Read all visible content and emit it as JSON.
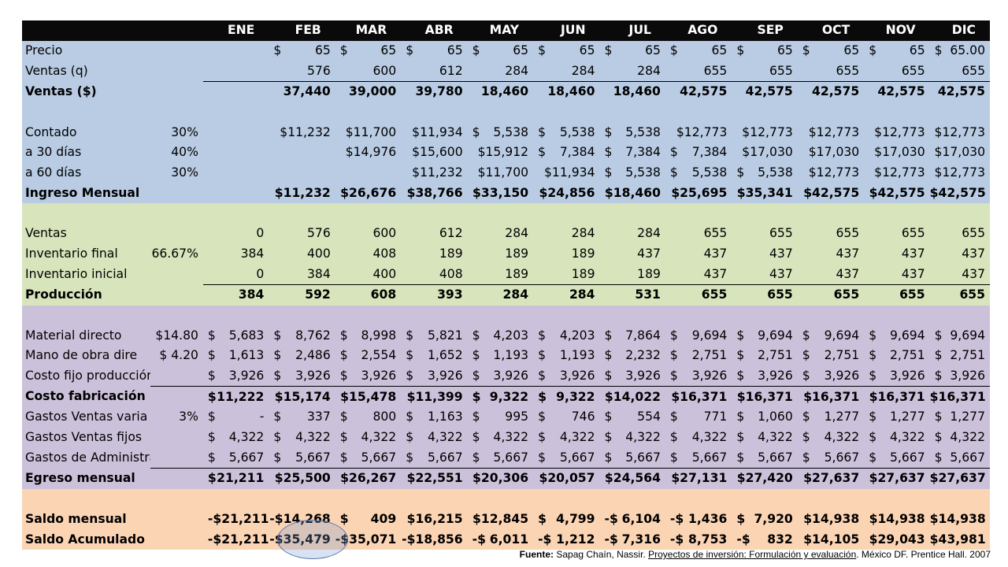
{
  "months": [
    "ENE",
    "FEB",
    "MAR",
    "ABR",
    "MAY",
    "JUN",
    "JUL",
    "AGO",
    "SEP",
    "OCT",
    "NOV",
    "DIC"
  ],
  "rows": [
    {
      "section": "blue",
      "style": "",
      "label": "Precio",
      "param": "",
      "cells": [
        null,
        [
          "$",
          "65"
        ],
        [
          "$",
          "65"
        ],
        [
          "$",
          "65"
        ],
        [
          "$",
          "65"
        ],
        [
          "$",
          "65"
        ],
        [
          "$",
          "65"
        ],
        [
          "$",
          "65"
        ],
        [
          "$",
          "65"
        ],
        [
          "$",
          "65"
        ],
        [
          "$",
          "65"
        ],
        [
          "$",
          "65.00"
        ]
      ]
    },
    {
      "section": "blue",
      "style": "",
      "label": "Ventas (q)",
      "param": "",
      "cells": [
        null,
        "576",
        "600",
        "612",
        "284",
        "284",
        "284",
        "655",
        "655",
        "655",
        "655",
        "655"
      ]
    },
    {
      "section": "blue",
      "style": "bold rule",
      "label": "Ventas ($)",
      "param": "",
      "cells": [
        null,
        "37,440",
        "39,000",
        "39,780",
        "18,460",
        "18,460",
        "18,460",
        "42,575",
        "42,575",
        "42,575",
        "42,575",
        "42,575"
      ]
    },
    {
      "section": "blue",
      "style": "",
      "label": "",
      "param": "",
      "cells": [
        null,
        null,
        null,
        null,
        null,
        null,
        null,
        null,
        null,
        null,
        null,
        null
      ]
    },
    {
      "section": "blue",
      "style": "",
      "label": "Contado",
      "param": "30%",
      "cells": [
        null,
        "$11,232",
        "$11,700",
        "$11,934",
        [
          "$",
          "5,538"
        ],
        [
          "$",
          "5,538"
        ],
        [
          "$",
          "5,538"
        ],
        "$12,773",
        "$12,773",
        "$12,773",
        "$12,773",
        "$12,773"
      ]
    },
    {
      "section": "blue",
      "style": "",
      "label": "a 30 días",
      "param": "40%",
      "cells": [
        null,
        null,
        "$14,976",
        "$15,600",
        "$15,912",
        [
          "$",
          "7,384"
        ],
        [
          "$",
          "7,384"
        ],
        [
          "$",
          "7,384"
        ],
        "$17,030",
        "$17,030",
        "$17,030",
        "$17,030"
      ]
    },
    {
      "section": "blue",
      "style": "",
      "label": "a 60 días",
      "param": "30%",
      "cells": [
        null,
        null,
        null,
        "$11,232",
        "$11,700",
        "$11,934",
        [
          "$",
          "5,538"
        ],
        [
          "$",
          "5,538"
        ],
        [
          "$",
          "5,538"
        ],
        "$12,773",
        "$12,773",
        "$12,773"
      ]
    },
    {
      "section": "blue",
      "style": "bold",
      "label": "Ingreso Mensual",
      "param": "",
      "cells": [
        null,
        "$11,232",
        "$26,676",
        "$38,766",
        "$33,150",
        "$24,856",
        "$18,460",
        "$25,695",
        "$35,341",
        "$42,575",
        "$42,575",
        "$42,575"
      ]
    },
    {
      "section": "green",
      "style": "",
      "label": "",
      "param": "",
      "cells": [
        null,
        null,
        null,
        null,
        null,
        null,
        null,
        null,
        null,
        null,
        null,
        null
      ]
    },
    {
      "section": "green",
      "style": "",
      "label": "Ventas",
      "param": "",
      "cells": [
        "0",
        "576",
        "600",
        "612",
        "284",
        "284",
        "284",
        "655",
        "655",
        "655",
        "655",
        "655"
      ]
    },
    {
      "section": "green",
      "style": "",
      "label": "Inventario final",
      "param": "66.67%",
      "cells": [
        "384",
        "400",
        "408",
        "189",
        "189",
        "189",
        "437",
        "437",
        "437",
        "437",
        "437",
        "437"
      ]
    },
    {
      "section": "green",
      "style": "",
      "label": "Inventario inicial",
      "param": "",
      "cells": [
        "0",
        "384",
        "400",
        "408",
        "189",
        "189",
        "189",
        "437",
        "437",
        "437",
        "437",
        "437"
      ]
    },
    {
      "section": "green",
      "style": "bold rule",
      "label": "Producción",
      "param": "",
      "cells": [
        "384",
        "592",
        "608",
        "393",
        "284",
        "284",
        "531",
        "655",
        "655",
        "655",
        "655",
        "655"
      ]
    },
    {
      "section": "purple",
      "style": "",
      "label": "",
      "param": "",
      "cells": [
        null,
        null,
        null,
        null,
        null,
        null,
        null,
        null,
        null,
        null,
        null,
        null
      ]
    },
    {
      "section": "purple",
      "style": "",
      "label": "Material directo",
      "param": "$14.80",
      "cells": [
        [
          "$",
          "5,683"
        ],
        [
          "$",
          "8,762"
        ],
        [
          "$",
          "8,998"
        ],
        [
          "$",
          "5,821"
        ],
        [
          "$",
          "4,203"
        ],
        [
          "$",
          "4,203"
        ],
        [
          "$",
          "7,864"
        ],
        [
          "$",
          "9,694"
        ],
        [
          "$",
          "9,694"
        ],
        [
          "$",
          "9,694"
        ],
        [
          "$",
          "9,694"
        ],
        [
          "$",
          "9,694"
        ]
      ]
    },
    {
      "section": "purple",
      "style": "",
      "label": "Mano de obra dire",
      "param": "$  4.20",
      "cells": [
        [
          "$",
          "1,613"
        ],
        [
          "$",
          "2,486"
        ],
        [
          "$",
          "2,554"
        ],
        [
          "$",
          "1,652"
        ],
        [
          "$",
          "1,193"
        ],
        [
          "$",
          "1,193"
        ],
        [
          "$",
          "2,232"
        ],
        [
          "$",
          "2,751"
        ],
        [
          "$",
          "2,751"
        ],
        [
          "$",
          "2,751"
        ],
        [
          "$",
          "2,751"
        ],
        [
          "$",
          "2,751"
        ]
      ]
    },
    {
      "section": "purple",
      "style": "",
      "label": "Costo fijo producción",
      "param": "",
      "cells": [
        [
          "$",
          "3,926"
        ],
        [
          "$",
          "3,926"
        ],
        [
          "$",
          "3,926"
        ],
        [
          "$",
          "3,926"
        ],
        [
          "$",
          "3,926"
        ],
        [
          "$",
          "3,926"
        ],
        [
          "$",
          "3,926"
        ],
        [
          "$",
          "3,926"
        ],
        [
          "$",
          "3,926"
        ],
        [
          "$",
          "3,926"
        ],
        [
          "$",
          "3,926"
        ],
        [
          "$",
          "3,926"
        ]
      ]
    },
    {
      "section": "purple",
      "style": "bold rule2",
      "label": "Costo fabricación",
      "param": "",
      "cells": [
        [
          "$",
          "11,222"
        ],
        "$15,174",
        "$15,478",
        "$11,399",
        [
          "$",
          "9,322"
        ],
        [
          "$",
          "9,322"
        ],
        "$14,022",
        "$16,371",
        "$16,371",
        "$16,371",
        "$16,371",
        "$16,371"
      ]
    },
    {
      "section": "purple",
      "style": "",
      "label": "Gastos Ventas varia",
      "param": "3%",
      "cells": [
        [
          "$",
          "-"
        ],
        [
          "$",
          "337"
        ],
        [
          "$",
          "800"
        ],
        [
          "$",
          "1,163"
        ],
        [
          "$",
          "995"
        ],
        [
          "$",
          "746"
        ],
        [
          "$",
          "554"
        ],
        [
          "$",
          "771"
        ],
        [
          "$",
          "1,060"
        ],
        [
          "$",
          "1,277"
        ],
        [
          "$",
          "1,277"
        ],
        [
          "$",
          "1,277"
        ]
      ]
    },
    {
      "section": "purple",
      "style": "",
      "label": "Gastos Ventas fijos",
      "param": "",
      "cells": [
        [
          "$",
          "4,322"
        ],
        [
          "$",
          "4,322"
        ],
        [
          "$",
          "4,322"
        ],
        [
          "$",
          "4,322"
        ],
        [
          "$",
          "4,322"
        ],
        [
          "$",
          "4,322"
        ],
        [
          "$",
          "4,322"
        ],
        [
          "$",
          "4,322"
        ],
        [
          "$",
          "4,322"
        ],
        [
          "$",
          "4,322"
        ],
        [
          "$",
          "4,322"
        ],
        [
          "$",
          "4,322"
        ]
      ]
    },
    {
      "section": "purple",
      "style": "",
      "label": "Gastos de Administración",
      "param": "",
      "cells": [
        [
          "$",
          "5,667"
        ],
        [
          "$",
          "5,667"
        ],
        [
          "$",
          "5,667"
        ],
        [
          "$",
          "5,667"
        ],
        [
          "$",
          "5,667"
        ],
        [
          "$",
          "5,667"
        ],
        [
          "$",
          "5,667"
        ],
        [
          "$",
          "5,667"
        ],
        [
          "$",
          "5,667"
        ],
        [
          "$",
          "5,667"
        ],
        [
          "$",
          "5,667"
        ],
        [
          "$",
          "5,667"
        ]
      ]
    },
    {
      "section": "purple",
      "style": "bold rule2",
      "label": "Egreso mensual",
      "param": "",
      "cells": [
        [
          "$",
          "21,211"
        ],
        "$25,500",
        "$26,267",
        "$22,551",
        "$20,306",
        "$20,057",
        "$24,564",
        "$27,131",
        "$27,420",
        "$27,637",
        "$27,637",
        "$27,637"
      ]
    },
    {
      "section": "orange",
      "style": "",
      "label": "",
      "param": "",
      "cells": [
        null,
        null,
        null,
        null,
        null,
        null,
        null,
        null,
        null,
        null,
        null,
        null
      ]
    },
    {
      "section": "orange",
      "style": "bold",
      "label": "Saldo mensual",
      "param": "",
      "cells": [
        [
          "-$",
          "21,211"
        ],
        "-$14,268",
        [
          "$",
          "409"
        ],
        "$16,215",
        "$12,845",
        [
          "$",
          "4,799"
        ],
        [
          "-$",
          "6,104"
        ],
        [
          "-$",
          "1,436"
        ],
        [
          "$",
          "7,920"
        ],
        "$14,938",
        "$14,938",
        "$14,938"
      ]
    },
    {
      "section": "orange",
      "style": "bold",
      "label": "Saldo Acumulado",
      "param": "",
      "cells": [
        [
          "-$",
          "21,211"
        ],
        "-$35,479",
        "-$35,071",
        "-$18,856",
        [
          "-$",
          "6,011"
        ],
        [
          "-$",
          "1,212"
        ],
        [
          "-$",
          "7,316"
        ],
        [
          "-$",
          "8,753"
        ],
        [
          "-$",
          "832"
        ],
        "$14,105",
        "$29,043",
        "$43,981"
      ]
    }
  ],
  "source": {
    "label": "Fuente:",
    "author": "Sapag Chaín, Nassir.",
    "title": "Proyectos de inversión: Formulación y evaluación",
    "rest": ". México DF. Prentice Hall. 2007"
  }
}
